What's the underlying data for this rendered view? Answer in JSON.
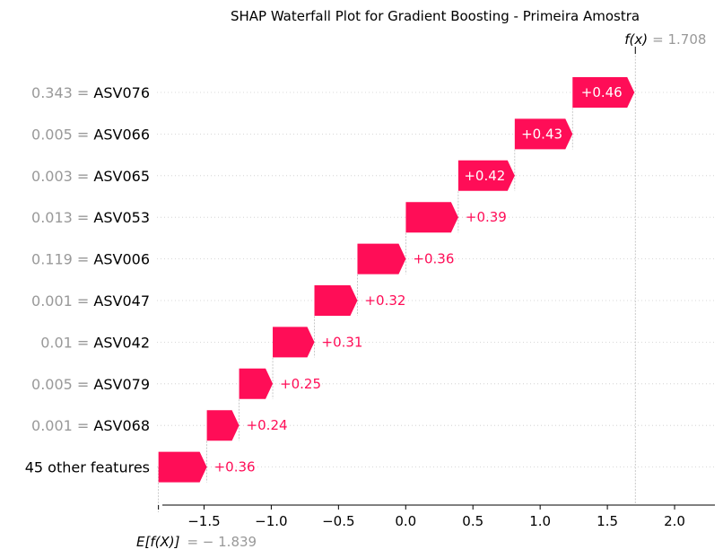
{
  "chart_data": {
    "type": "waterfall",
    "title": "SHAP Waterfall Plot for Gradient Boosting - Primeira Amostra",
    "base_value": -1.839,
    "base_value_label": "E[f(X)]",
    "base_value_text": "= − 1.839",
    "output_value": 1.708,
    "output_value_label": "f(x)",
    "output_value_text": "= 1.708",
    "xlim": [
      -1.85,
      2.3
    ],
    "xticks": [
      -1.5,
      -1.0,
      -0.5,
      0.0,
      0.5,
      1.0,
      1.5,
      2.0
    ],
    "xtick_labels": [
      "−1.5",
      "−1.0",
      "−0.5",
      "0.0",
      "0.5",
      "1.0",
      "1.5",
      "2.0"
    ],
    "bar_color": "#ff0d57",
    "features": [
      {
        "value": "0.343",
        "name": "ASV076",
        "shap": 0.46,
        "label": "+0.46"
      },
      {
        "value": "0.005",
        "name": "ASV066",
        "shap": 0.43,
        "label": "+0.43"
      },
      {
        "value": "0.003",
        "name": "ASV065",
        "shap": 0.42,
        "label": "+0.42"
      },
      {
        "value": "0.013",
        "name": "ASV053",
        "shap": 0.39,
        "label": "+0.39"
      },
      {
        "value": "0.119",
        "name": "ASV006",
        "shap": 0.36,
        "label": "+0.36"
      },
      {
        "value": "0.001",
        "name": "ASV047",
        "shap": 0.32,
        "label": "+0.32"
      },
      {
        "value": "0.01",
        "name": "ASV042",
        "shap": 0.31,
        "label": "+0.31"
      },
      {
        "value": "0.005",
        "name": "ASV079",
        "shap": 0.25,
        "label": "+0.25"
      },
      {
        "value": "0.001",
        "name": "ASV068",
        "shap": 0.24,
        "label": "+0.24"
      },
      {
        "value": "",
        "name": "45 other features",
        "shap": 0.36,
        "label": "+0.36"
      }
    ]
  }
}
